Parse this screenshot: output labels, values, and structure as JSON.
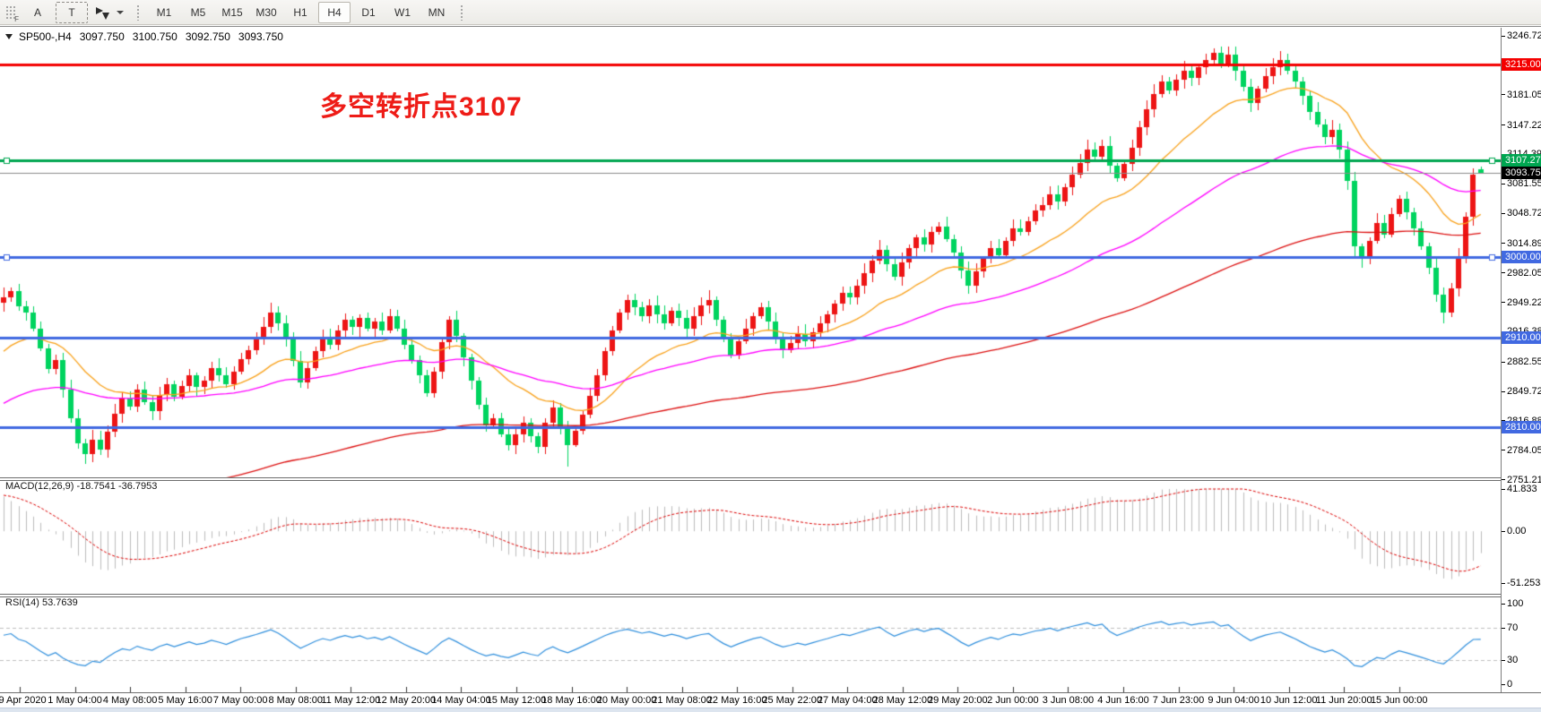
{
  "toolbar": {
    "grip_label": "F",
    "font_tool_label": "A",
    "text_tool_label": "T",
    "timeframes": [
      "M1",
      "M5",
      "M15",
      "M30",
      "H1",
      "H4",
      "D1",
      "W1",
      "MN"
    ],
    "active_timeframe": "H4"
  },
  "chart_header": {
    "symbol": "SP500-,H4",
    "open": "3097.750",
    "high": "3100.750",
    "low": "3092.750",
    "close": "3093.750"
  },
  "annotation": {
    "text": "多空转折点3107",
    "color": "#ee1c17"
  },
  "price_axis": {
    "ticks": [
      "3246.725",
      "3181.055",
      "3147.225",
      "3114.390",
      "3081.555",
      "3048.720",
      "3014.890",
      "2982.055",
      "2949.220",
      "2916.385",
      "2882.555",
      "2849.720",
      "2816.885",
      "2784.050",
      "2751.215"
    ],
    "tagged": [
      {
        "value": "3215.000",
        "bg": "#f40000"
      },
      {
        "value": "3107.273",
        "bg": "#00a651"
      },
      {
        "value": "3093.750",
        "bg": "#000000"
      },
      {
        "value": "3000.000",
        "bg": "#4169e1"
      },
      {
        "value": "2910.000",
        "bg": "#4169e1"
      },
      {
        "value": "2810.000",
        "bg": "#4169e1"
      }
    ]
  },
  "time_axis": {
    "labels": [
      "29 Apr 2020",
      "1 May 04:00",
      "4 May 08:00",
      "5 May 16:00",
      "7 May 00:00",
      "8 May 08:00",
      "11 May 12:00",
      "12 May 20:00",
      "14 May 04:00",
      "15 May 12:00",
      "18 May 16:00",
      "20 May 00:00",
      "21 May 08:00",
      "22 May 16:00",
      "25 May 22:00",
      "27 May 04:00",
      "28 May 12:00",
      "29 May 20:00",
      "2 Jun 00:00",
      "3 Jun 08:00",
      "4 Jun 16:00",
      "7 Jun 23:00",
      "9 Jun 04:00",
      "10 Jun 12:00",
      "11 Jun 20:00",
      "15 Jun 00:00"
    ]
  },
  "panels": {
    "macd": {
      "label": "MACD(12,26,9) -18.7541 -36.7953",
      "params": [
        12,
        26,
        9
      ],
      "main_value": -18.7541,
      "signal_value": -36.7953,
      "axis": [
        {
          "text": "41.833",
          "value": 41.833
        },
        {
          "text": "0.00",
          "value": 0
        },
        {
          "text": "-51.2535",
          "value": -51.2535
        }
      ],
      "range": [
        41.833,
        -51.2535
      ]
    },
    "rsi": {
      "label": "RSI(14) 53.7639",
      "period": 14,
      "value": 53.7639,
      "axis": [
        {
          "text": "100",
          "value": 100
        },
        {
          "text": "70",
          "value": 70
        },
        {
          "text": "30",
          "value": 30
        },
        {
          "text": "0",
          "value": 0
        }
      ],
      "levels": [
        70,
        30
      ]
    }
  },
  "chart_data": {
    "type": "candlestick",
    "symbol": "SP500-",
    "timeframe": "H4",
    "title": "多空转折点3107",
    "price_range": [
      2751.215,
      3246.725
    ],
    "current_price": 3093.75,
    "first_open": 2949,
    "closes": [
      2955,
      2962,
      2945,
      2938,
      2920,
      2898,
      2875,
      2885,
      2852,
      2820,
      2792,
      2780,
      2796,
      2785,
      2805,
      2825,
      2842,
      2833,
      2852,
      2838,
      2828,
      2846,
      2858,
      2844,
      2856,
      2868,
      2855,
      2862,
      2876,
      2868,
      2858,
      2872,
      2886,
      2896,
      2908,
      2922,
      2938,
      2926,
      2908,
      2884,
      2860,
      2876,
      2895,
      2910,
      2902,
      2918,
      2930,
      2922,
      2932,
      2920,
      2928,
      2918,
      2934,
      2920,
      2902,
      2885,
      2868,
      2848,
      2872,
      2905,
      2930,
      2912,
      2888,
      2862,
      2835,
      2812,
      2820,
      2802,
      2790,
      2802,
      2815,
      2800,
      2788,
      2815,
      2832,
      2808,
      2790,
      2806,
      2824,
      2845,
      2868,
      2895,
      2918,
      2938,
      2952,
      2944,
      2934,
      2946,
      2936,
      2926,
      2940,
      2932,
      2920,
      2934,
      2946,
      2952,
      2930,
      2908,
      2890,
      2906,
      2920,
      2934,
      2944,
      2928,
      2910,
      2896,
      2904,
      2914,
      2906,
      2916,
      2926,
      2936,
      2948,
      2960,
      2955,
      2968,
      2982,
      2996,
      3008,
      2992,
      2978,
      2994,
      3010,
      3022,
      3014,
      3028,
      3034,
      3020,
      3005,
      2985,
      2968,
      2984,
      2998,
      3010,
      3002,
      3018,
      3032,
      3028,
      3040,
      3052,
      3058,
      3070,
      3062,
      3078,
      3092,
      3105,
      3120,
      3112,
      3124,
      3102,
      3088,
      3104,
      3122,
      3145,
      3165,
      3182,
      3196,
      3186,
      3198,
      3208,
      3200,
      3212,
      3220,
      3228,
      3216,
      3226,
      3208,
      3190,
      3172,
      3188,
      3202,
      3212,
      3220,
      3208,
      3196,
      3180,
      3162,
      3148,
      3134,
      3142,
      3120,
      3085,
      3012,
      2998,
      3018,
      3038,
      3025,
      3048,
      3065,
      3050,
      3032,
      3012,
      2988,
      2958,
      2938,
      2965,
      3000,
      3045,
      3092,
      3093.75
    ],
    "last_candle": {
      "open": 3097.75,
      "high": 3100.75,
      "low": 3092.75,
      "close": 3093.75
    },
    "wick_overrides": {
      "11": {
        "low": 2768
      },
      "76": {
        "low": 2766
      },
      "163": {
        "high": 3232.75
      },
      "182": {
        "low": 2999
      },
      "194": {
        "low": 2926
      }
    },
    "hlines": [
      {
        "price": 3215.0,
        "color": "#f40000",
        "width": 3,
        "selected": false
      },
      {
        "price": 3107.273,
        "color": "#00a651",
        "width": 3,
        "selected": true
      },
      {
        "price": 3000.0,
        "color": "#4169e1",
        "width": 3,
        "selected": true
      },
      {
        "price": 2910.0,
        "color": "#4169e1",
        "width": 3,
        "selected": false
      },
      {
        "price": 2810.0,
        "color": "#4169e1",
        "width": 3,
        "selected": false
      }
    ],
    "moving_averages": [
      {
        "period": 20,
        "start": 2888,
        "color": "#f9a21c"
      },
      {
        "period": 55,
        "start": 2832,
        "color": "#ff00ff"
      },
      {
        "period": 130,
        "start": 2690,
        "color": "#dd1111"
      }
    ],
    "colors": {
      "up": "#ed1515",
      "down": "#00d45f",
      "macd_hist": "#bdbdbd",
      "macd_signal": "#dd0000",
      "rsi_line": "#2f8fdd",
      "current_price_line": "#8c8c8c"
    },
    "indicator_seeds": {
      "ema12": 2990,
      "ema26": 2950,
      "signal": 36,
      "rsi_avg_gain": 7,
      "rsi_avg_loss": 4.5
    }
  }
}
